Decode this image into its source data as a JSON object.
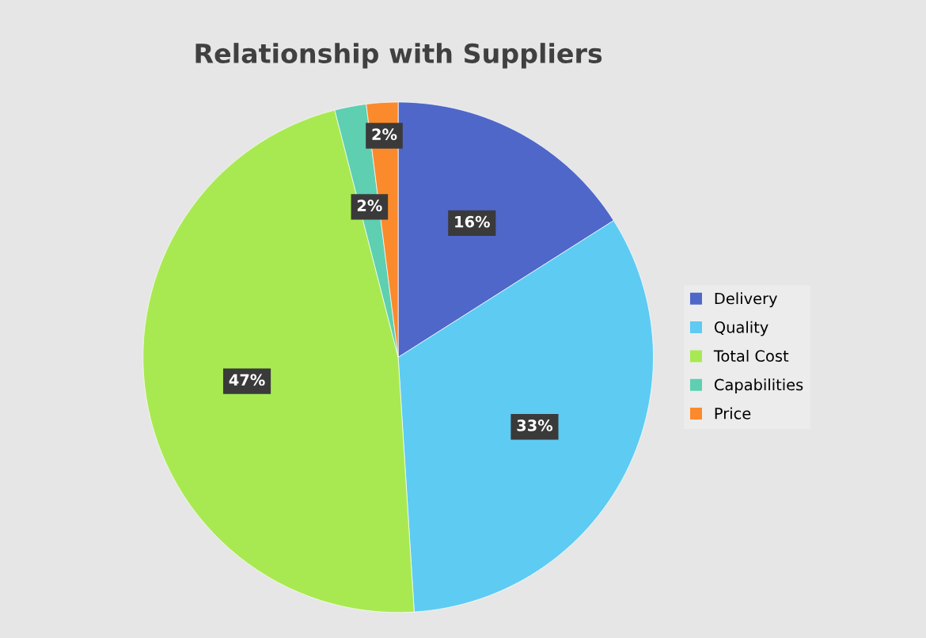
{
  "chart_data": {
    "type": "pie",
    "title": "Relationship with Suppliers",
    "categories": [
      "Delivery",
      "Quality",
      "Total Cost",
      "Capabilities",
      "Price"
    ],
    "values": [
      16,
      33,
      47,
      2,
      2
    ],
    "colors": [
      "#4f67c9",
      "#5ecbf2",
      "#a8e952",
      "#5ecfb0",
      "#fb8a2c"
    ],
    "value_labels": [
      "16%",
      "33%",
      "47%",
      "2%",
      "2%"
    ],
    "legend": "right"
  }
}
